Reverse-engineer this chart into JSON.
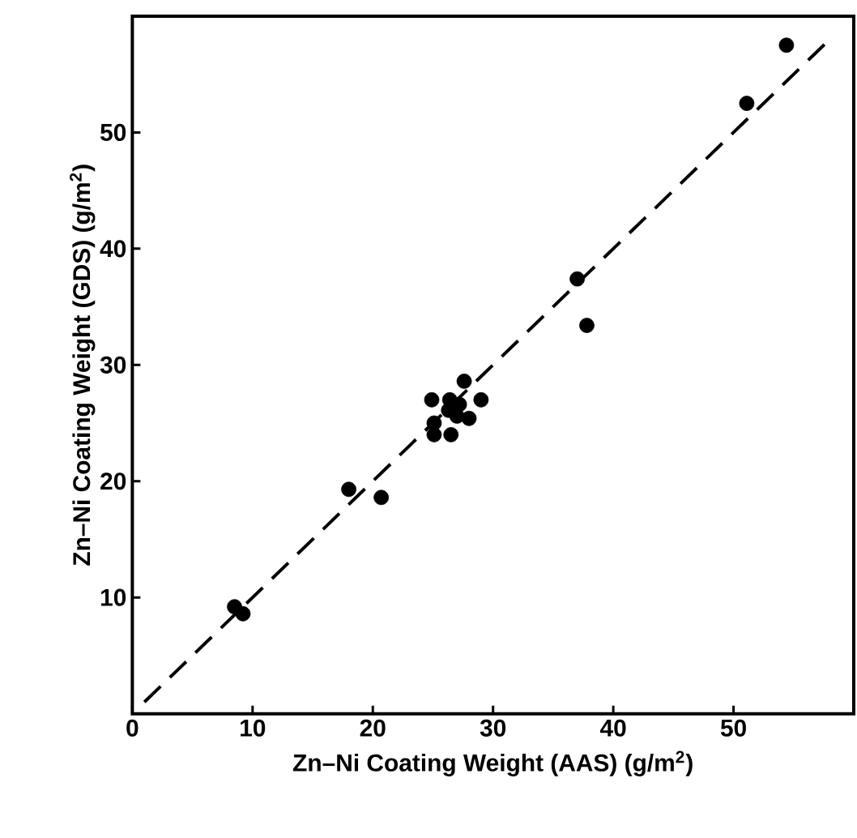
{
  "chart_data": {
    "type": "scatter",
    "xlabel": "Zn–Ni Coating Weight (AAS) (g/m$^{2}$)",
    "ylabel": "Zn–Ni Coating Weight (GDS) (g/m$^{2}$)",
    "xlim": [
      0,
      60
    ],
    "ylim": [
      0,
      60
    ],
    "xticks": [
      0,
      10,
      20,
      30,
      40,
      50
    ],
    "yticks": [
      10,
      20,
      30,
      40,
      50
    ],
    "grid": false,
    "series": [
      {
        "color": "#000000",
        "marker": "circle",
        "x": [
          54.4,
          51.1,
          37.0,
          37.8,
          27.6,
          24.9,
          29.0,
          26.4,
          25.1,
          25.1,
          26.5,
          28.0,
          26.3,
          27.0,
          27.2,
          18.0,
          20.7,
          8.5,
          9.2
        ],
        "values": [
          57.5,
          52.5,
          37.4,
          33.4,
          28.6,
          27.0,
          27.0,
          27.0,
          25.0,
          24.0,
          24.0,
          25.4,
          26.1,
          25.6,
          26.6,
          19.3,
          18.6,
          9.2,
          8.6
        ]
      },
      {
        "type": "line",
        "color": "#000000",
        "marker": "none",
        "line_style": "dashed",
        "x": [
          1,
          58
        ],
        "values": [
          1,
          58
        ]
      }
    ]
  }
}
